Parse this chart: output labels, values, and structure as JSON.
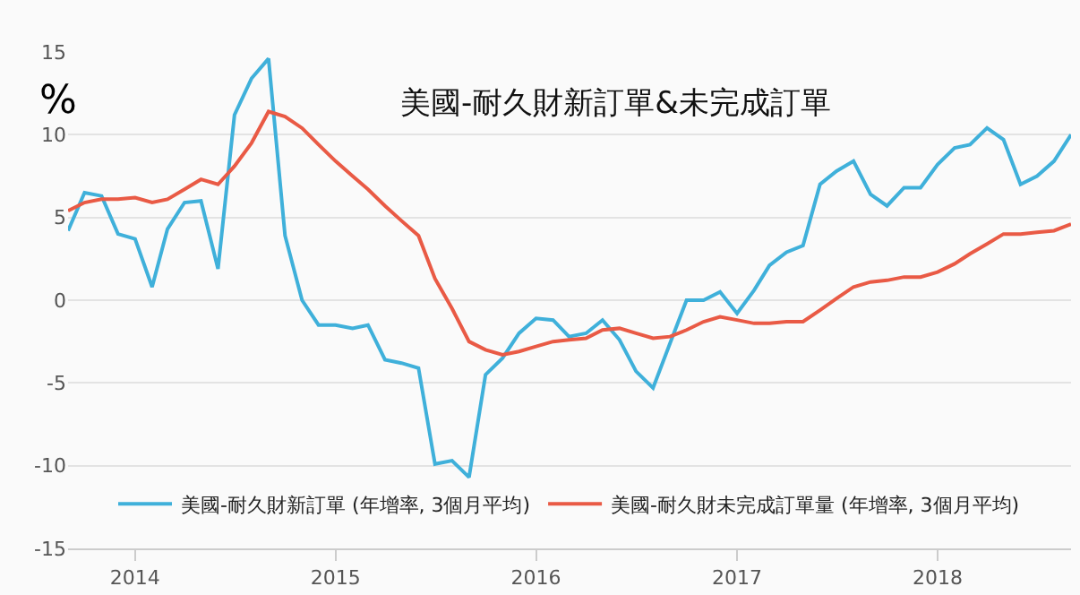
{
  "chart_data": {
    "type": "line",
    "title": "美國-耐久財新訂單&未完成訂單",
    "ylabel": "%",
    "x": [
      "2013-09",
      "2013-10",
      "2013-11",
      "2013-12",
      "2014-01",
      "2014-02",
      "2014-03",
      "2014-04",
      "2014-05",
      "2014-06",
      "2014-07",
      "2014-08",
      "2014-09",
      "2014-10",
      "2014-11",
      "2014-12",
      "2015-01",
      "2015-02",
      "2015-03",
      "2015-04",
      "2015-05",
      "2015-06",
      "2015-07",
      "2015-08",
      "2015-09",
      "2015-10",
      "2015-11",
      "2015-12",
      "2016-01",
      "2016-02",
      "2016-03",
      "2016-04",
      "2016-05",
      "2016-06",
      "2016-07",
      "2016-08",
      "2016-09",
      "2016-10",
      "2016-11",
      "2016-12",
      "2017-01",
      "2017-02",
      "2017-03",
      "2017-04",
      "2017-05",
      "2017-06",
      "2017-07",
      "2017-08",
      "2017-09",
      "2017-10",
      "2017-11",
      "2017-12",
      "2018-01",
      "2018-02",
      "2018-03",
      "2018-04",
      "2018-05",
      "2018-06",
      "2018-07",
      "2018-08",
      "2018-09"
    ],
    "series": [
      {
        "name": "美國-耐久財新訂單 (年增率, 3個月平均)",
        "color": "#3fb0da",
        "values": [
          4.2,
          6.5,
          6.3,
          4.0,
          3.7,
          0.8,
          4.3,
          5.9,
          6.0,
          1.9,
          11.2,
          13.4,
          14.6,
          3.9,
          0.0,
          -1.5,
          -1.5,
          -1.7,
          -1.5,
          -3.6,
          -3.8,
          -4.1,
          -9.9,
          -9.7,
          -10.7,
          -4.5,
          -3.5,
          -2.0,
          -1.1,
          -1.2,
          -2.2,
          -2.0,
          -1.2,
          -2.4,
          -4.3,
          -5.3,
          -2.6,
          0.0,
          0.0,
          0.5,
          -0.8,
          0.6,
          2.1,
          2.9,
          3.3,
          7.0,
          7.8,
          8.4,
          6.4,
          5.7,
          6.8,
          6.8,
          8.2,
          9.2,
          9.4,
          10.4,
          9.7,
          7.0,
          7.5,
          8.4,
          10.0
        ]
      },
      {
        "name": "美國-耐久財未完成訂單量 (年增率, 3個月平均)",
        "color": "#e95a45",
        "values": [
          5.4,
          5.9,
          6.1,
          6.1,
          6.2,
          5.9,
          6.1,
          6.7,
          7.3,
          7.0,
          8.1,
          9.5,
          11.4,
          11.1,
          10.4,
          9.4,
          8.4,
          7.5,
          6.7,
          5.7,
          4.8,
          3.9,
          1.3,
          -0.5,
          -2.5,
          -3.0,
          -3.3,
          -3.1,
          -2.8,
          -2.5,
          -2.4,
          -2.3,
          -1.8,
          -1.7,
          -2.0,
          -2.3,
          -2.2,
          -1.8,
          -1.3,
          -1.0,
          -1.2,
          -1.4,
          -1.4,
          -1.3,
          -1.3,
          -0.6,
          0.1,
          0.8,
          1.1,
          1.2,
          1.4,
          1.4,
          1.7,
          2.2,
          2.8,
          3.4,
          4.0,
          4.0,
          4.1,
          4.2,
          4.6
        ]
      }
    ],
    "xlim": [
      "2013-09",
      "2018-09"
    ],
    "xticks": [
      {
        "value": "2014",
        "label": "2014"
      },
      {
        "value": "2015",
        "label": "2015"
      },
      {
        "value": "2016",
        "label": "2016"
      },
      {
        "value": "2017",
        "label": "2017"
      },
      {
        "value": "2018",
        "label": "2018"
      }
    ],
    "ylim": [
      -15,
      15
    ],
    "yticks": [
      -15,
      -10,
      -5,
      0,
      5,
      10,
      15
    ],
    "grid": "y",
    "legend": "bottom",
    "marker": "none",
    "line_style": "solid"
  }
}
